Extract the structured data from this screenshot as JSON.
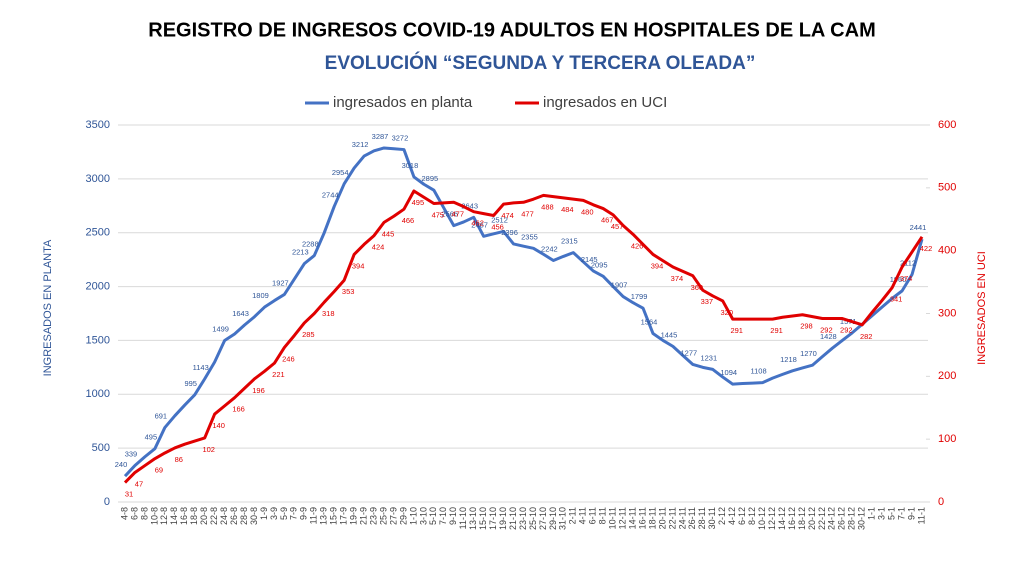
{
  "chart_data": {
    "type": "line",
    "title": "REGISTRO DE INGRESOS COVID-19 ADULTOS  EN HOSPITALES DE LA CAM",
    "subtitle": "EVOLUCIÓN “SEGUNDA Y TERCERA OLEADA”",
    "y_label": "INGRESADOS EN PLANTA",
    "y2_label": "INGRESADOS EN UCI",
    "categories": [
      "4-8",
      "6-8",
      "8-8",
      "10-8",
      "12-8",
      "14-8",
      "16-8",
      "18-8",
      "20-8",
      "22-8",
      "24-8",
      "26-8",
      "28-8",
      "30-8",
      "1-9",
      "3-9",
      "5-9",
      "7-9",
      "9-9",
      "11-9",
      "13-9",
      "15-9",
      "17-9",
      "19-9",
      "21-9",
      "23-9",
      "25-9",
      "27-9",
      "29-9",
      "1-10",
      "3-10",
      "5-10",
      "7-10",
      "9-10",
      "11-10",
      "13-10",
      "15-10",
      "17-10",
      "19-10",
      "21-10",
      "23-10",
      "25-10",
      "27-10",
      "29-10",
      "31-10",
      "2-11",
      "4-11",
      "6-11",
      "8-11",
      "10-11",
      "12-11",
      "14-11",
      "16-11",
      "18-11",
      "20-11",
      "22-11",
      "24-11",
      "26-11",
      "28-11",
      "30-11",
      "2-12",
      "4-12",
      "6-12",
      "8-12",
      "10-12",
      "12-12",
      "14-12",
      "16-12",
      "18-12",
      "20-12",
      "22-12",
      "24-12",
      "26-12",
      "28-12",
      "30-12",
      "1-1",
      "3-1",
      "5-1",
      "7-1",
      "9-1",
      "11-1"
    ],
    "series": [
      {
        "name": "ingresados en planta",
        "color": "#4472c4",
        "axis": "y",
        "values": [
          240,
          339,
          420,
          495,
          691,
          800,
          900,
          995,
          1143,
          1300,
          1499,
          1560,
          1643,
          1720,
          1809,
          1870,
          1927,
          2070,
          2213,
          2288,
          2500,
          2744,
          2954,
          3100,
          3212,
          3260,
          3287,
          3280,
          3272,
          3018,
          2950,
          2895,
          2730,
          2566,
          2600,
          2643,
          2467,
          2490,
          2512,
          2396,
          2375,
          2355,
          2300,
          2242,
          2280,
          2315,
          2230,
          2145,
          2095,
          2000,
          1907,
          1850,
          1799,
          1564,
          1500,
          1445,
          1360,
          1277,
          1250,
          1231,
          1160,
          1094,
          1100,
          1104,
          1108,
          1150,
          1185,
          1218,
          1245,
          1270,
          1350,
          1428,
          1500,
          1571,
          1650,
          1730,
          1810,
          1890,
          1960,
          2112,
          2441
        ],
        "value_labels": [
          240,
          339,
          null,
          495,
          691,
          null,
          null,
          995,
          1143,
          null,
          1499,
          null,
          1643,
          null,
          1809,
          null,
          1927,
          null,
          2213,
          2288,
          null,
          2744,
          2954,
          null,
          3212,
          null,
          3287,
          null,
          3272,
          3018,
          null,
          2895,
          null,
          2566,
          null,
          2643,
          2467,
          null,
          2512,
          2396,
          null,
          2355,
          null,
          2242,
          null,
          2315,
          null,
          2145,
          2095,
          null,
          1907,
          null,
          1799,
          1564,
          null,
          1445,
          null,
          1277,
          null,
          1231,
          null,
          1094,
          null,
          null,
          1108,
          null,
          null,
          1218,
          null,
          1270,
          null,
          1428,
          null,
          1571,
          null,
          null,
          null,
          null,
          1960,
          2112,
          2441
        ]
      },
      {
        "name": "ingresados en UCI",
        "color": "#e00000",
        "axis": "y2",
        "values": [
          31,
          47,
          58,
          69,
          78,
          86,
          92,
          97,
          102,
          140,
          153,
          166,
          181,
          196,
          208,
          221,
          246,
          265,
          285,
          300,
          318,
          335,
          353,
          394,
          410,
          424,
          445,
          455,
          466,
          495,
          485,
          475,
          476,
          477,
          470,
          462,
          459,
          456,
          474,
          476,
          477,
          482,
          488,
          486,
          484,
          482,
          480,
          473,
          467,
          457,
          440,
          426,
          410,
          394,
          384,
          374,
          367,
          360,
          337,
          328,
          320,
          291,
          291,
          291,
          291,
          291,
          294,
          296,
          298,
          295,
          292,
          292,
          292,
          287,
          282,
          302,
          321,
          341,
          374,
          398,
          422
        ],
        "value_labels": [
          31,
          47,
          null,
          69,
          null,
          86,
          null,
          null,
          102,
          140,
          null,
          166,
          null,
          196,
          null,
          221,
          246,
          null,
          285,
          null,
          318,
          null,
          353,
          394,
          null,
          424,
          445,
          null,
          466,
          495,
          null,
          475,
          null,
          477,
          null,
          462,
          null,
          456,
          474,
          null,
          477,
          null,
          488,
          null,
          484,
          null,
          480,
          null,
          467,
          457,
          null,
          426,
          null,
          394,
          null,
          374,
          null,
          360,
          337,
          null,
          320,
          291,
          null,
          null,
          null,
          291,
          null,
          null,
          298,
          null,
          292,
          null,
          292,
          null,
          282,
          null,
          null,
          341,
          374,
          null,
          422
        ]
      }
    ],
    "ylim": [
      0,
      3500
    ],
    "yticks": [
      0,
      500,
      1000,
      1500,
      2000,
      2500,
      3000,
      3500
    ],
    "y2lim": [
      0,
      600
    ],
    "y2ticks": [
      0,
      100,
      200,
      300,
      400,
      500,
      600
    ],
    "grid": true
  }
}
